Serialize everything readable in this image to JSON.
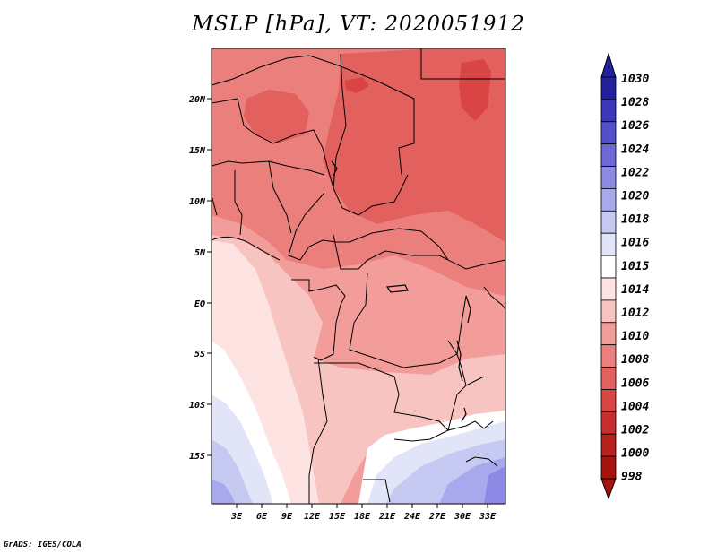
{
  "title": "MSLP [hPa], VT: 2020051912",
  "credit": "GrADS: IGES/COLA",
  "colors": {
    "c998": "#a5150d",
    "c1000": "#b7201c",
    "c1002": "#c82e2d",
    "c1004": "#d94444",
    "c1006": "#e2605e",
    "c1008": "#eb7f7c",
    "c1010": "#f29d9a",
    "c1012": "#f8c4c1",
    "c1014": "#fde3e1",
    "c1015": "#ffffff",
    "c1016": "#e2e4f8",
    "c1018": "#c6c9f2",
    "c1020": "#a8a9ec",
    "c1022": "#8b89e4",
    "c1024": "#6d68d8",
    "c1026": "#5450cb",
    "c1028": "#3b37bb",
    "c1030": "#23209e"
  },
  "map": {
    "lat_labels": [
      "20N",
      "15N",
      "10N",
      "5N",
      "EQ",
      "5S",
      "10S",
      "15S"
    ],
    "lon_labels": [
      "3E",
      "6E",
      "9E",
      "12E",
      "15E",
      "18E",
      "21E",
      "24E",
      "27E",
      "30E",
      "33E"
    ]
  },
  "colorbar": {
    "labels": [
      "1030",
      "1028",
      "1026",
      "1024",
      "1022",
      "1020",
      "1018",
      "1016",
      "1015",
      "1014",
      "1012",
      "1010",
      "1008",
      "1006",
      "1004",
      "1002",
      "1000",
      "998"
    ],
    "colors": [
      "#23209e",
      "#3b37bb",
      "#5450cb",
      "#6d68d8",
      "#8b89e4",
      "#a8a9ec",
      "#c6c9f2",
      "#e2e4f8",
      "#ffffff",
      "#fde3e1",
      "#f8c4c1",
      "#f29d9a",
      "#eb7f7c",
      "#e2605e",
      "#d94444",
      "#c82e2d",
      "#b7201c",
      "#a5150d"
    ]
  }
}
